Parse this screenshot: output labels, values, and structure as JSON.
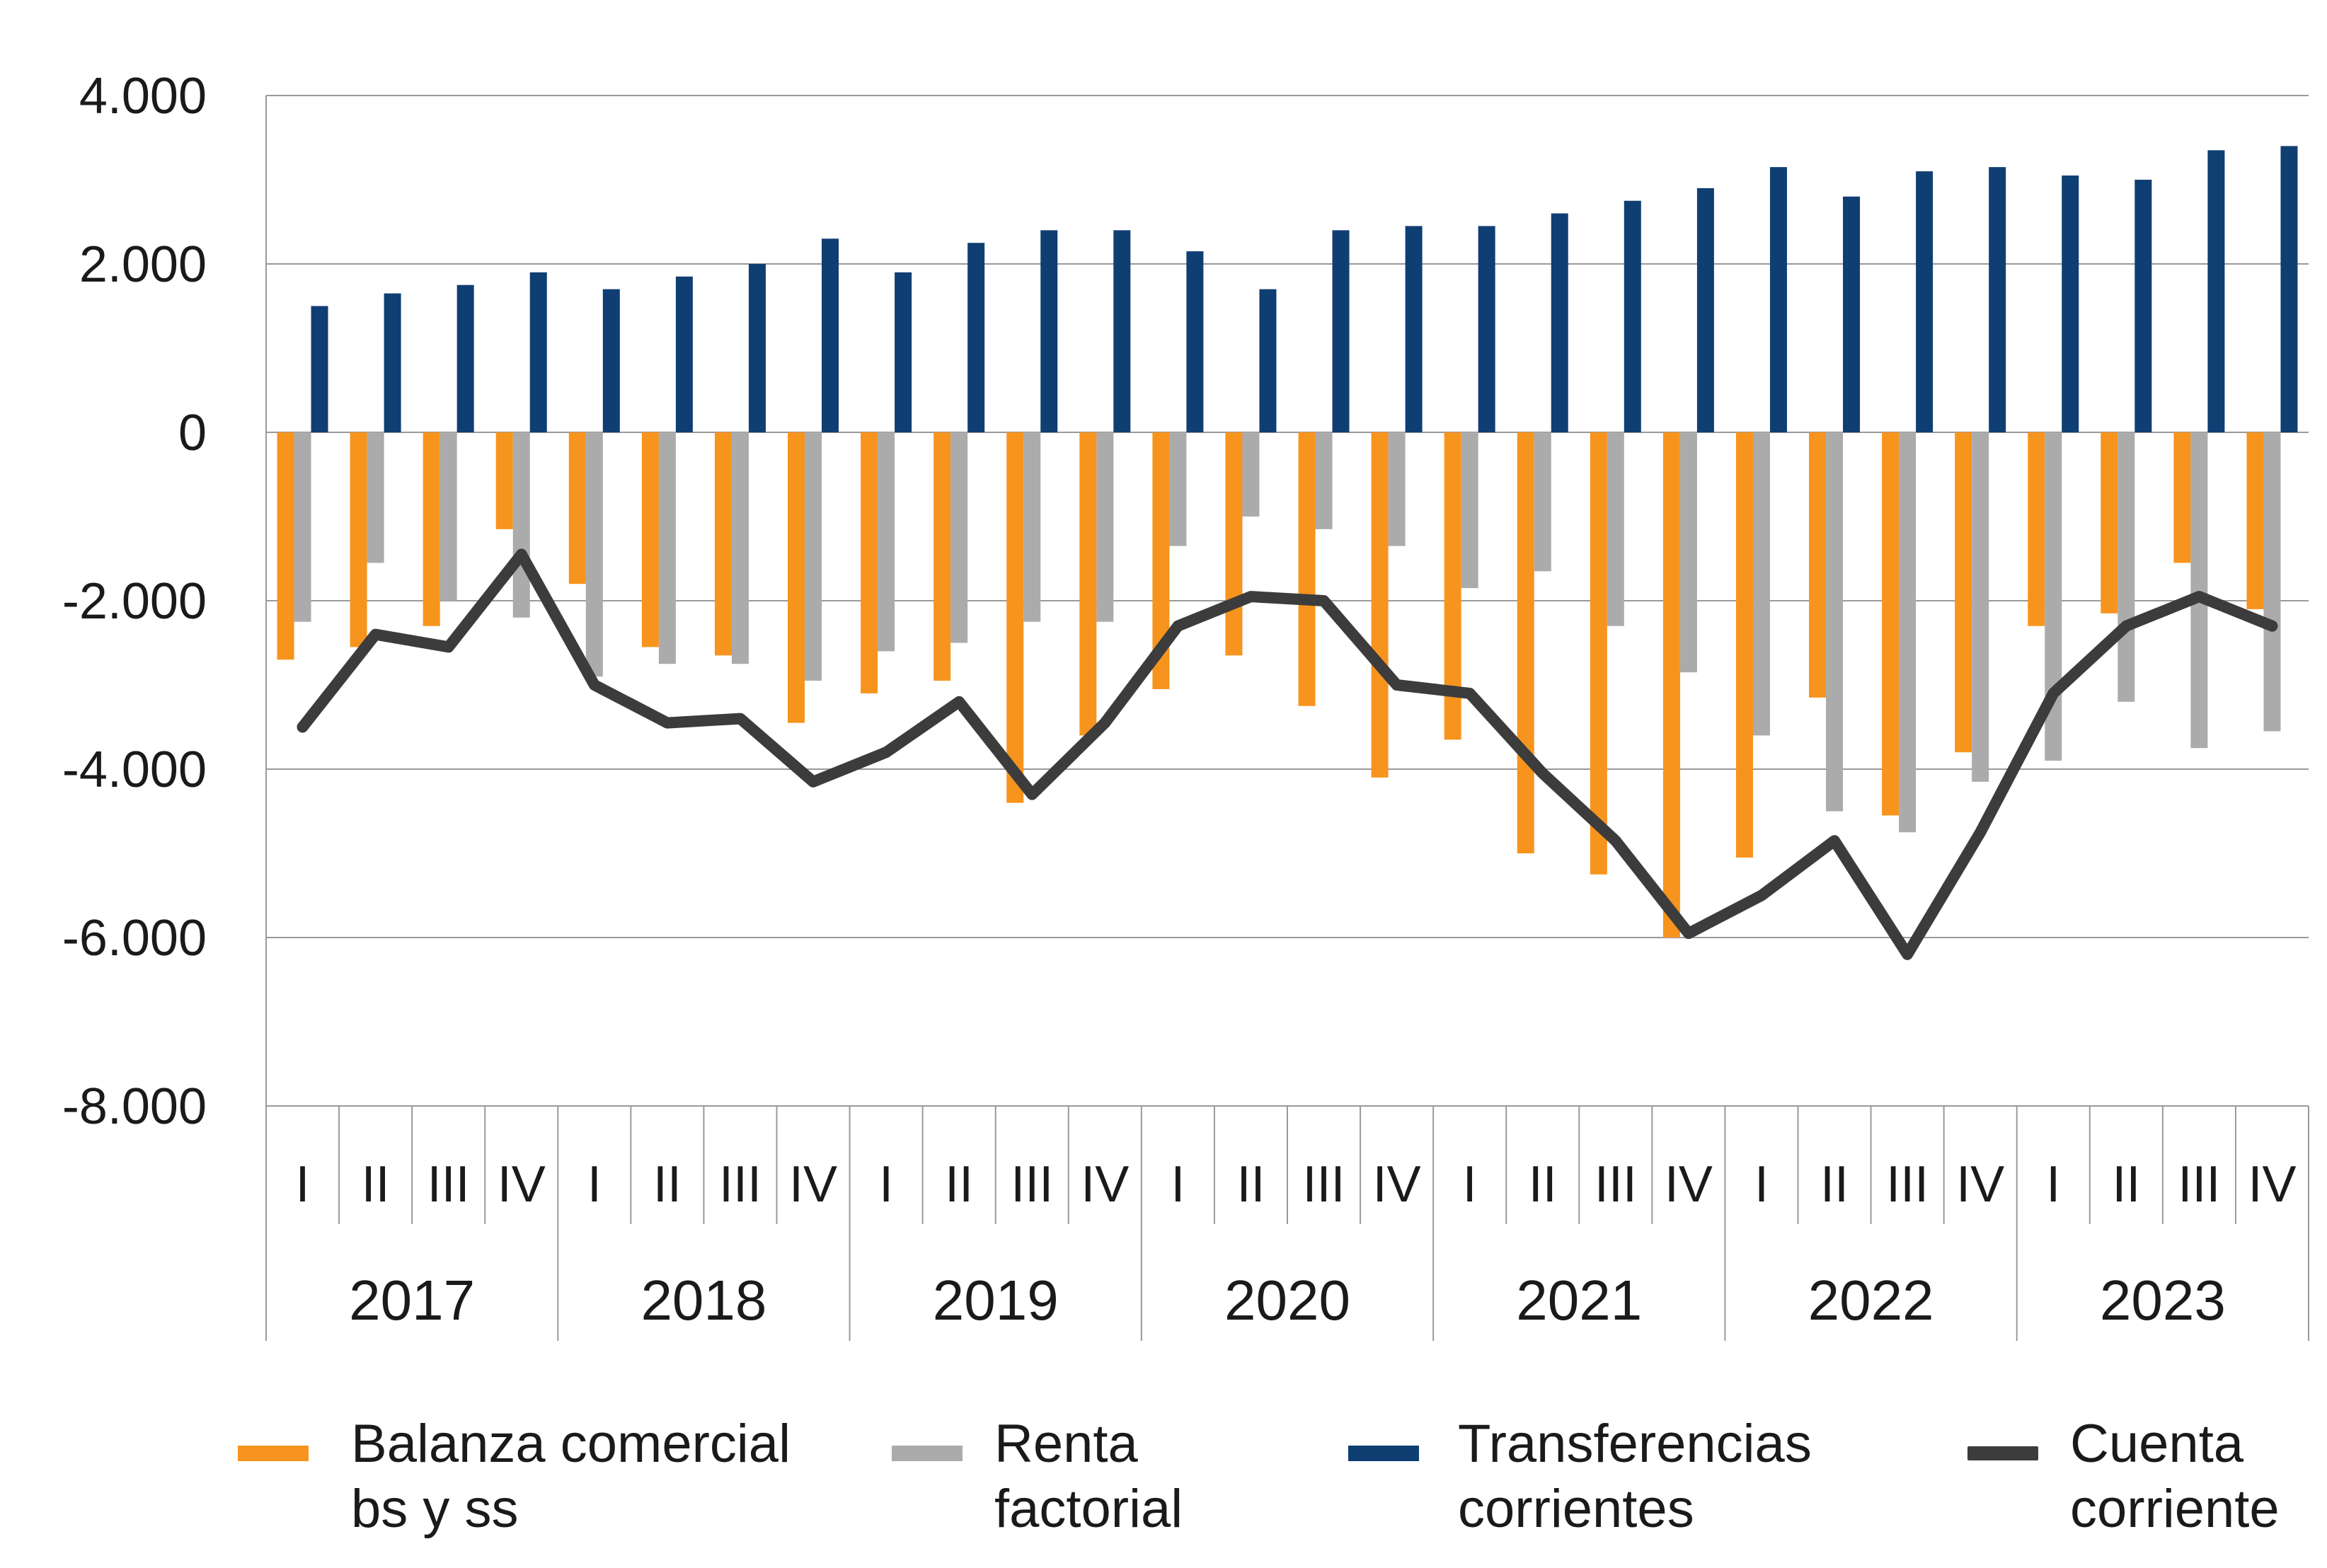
{
  "chart_data": {
    "type": "bar",
    "title": "",
    "xlabel": "",
    "ylabel": "",
    "ylim": [
      -8000,
      4000
    ],
    "yticks": [
      4000,
      2000,
      0,
      -2000,
      -4000,
      -6000,
      -8000
    ],
    "ytick_labels": [
      "4.000",
      "2.000",
      "0",
      "-2.000",
      "-4.000",
      "-6.000",
      "-8.000"
    ],
    "quarter_labels": [
      "I",
      "II",
      "III",
      "IV",
      "I",
      "II",
      "III",
      "IV",
      "I",
      "II",
      "III",
      "IV",
      "I",
      "II",
      "III",
      "IV",
      "I",
      "II",
      "III",
      "IV",
      "I",
      "II",
      "III",
      "IV",
      "I",
      "II",
      "III",
      "IV"
    ],
    "years": [
      "2017",
      "2018",
      "2019",
      "2020",
      "2021",
      "2022",
      "2023"
    ],
    "grid": true,
    "legend_position": "bottom",
    "series": [
      {
        "name": "Balanza comercial bs y ss",
        "kind": "bar",
        "color": "#F7941D",
        "values": [
          -2700,
          -2550,
          -2300,
          -1150,
          -1800,
          -2550,
          -2650,
          -3450,
          -3100,
          -2950,
          -4400,
          -3600,
          -3050,
          -2650,
          -3250,
          -4100,
          -3650,
          -5000,
          -5250,
          -6000,
          -5050,
          -3150,
          -4550,
          -3800,
          -2300,
          -2150,
          -1550,
          -2100
        ]
      },
      {
        "name": "Renta factorial",
        "kind": "bar",
        "color": "#ABABAB",
        "values": [
          -2250,
          -1550,
          -2000,
          -2200,
          -2900,
          -2750,
          -2750,
          -2950,
          -2600,
          -2500,
          -2250,
          -2250,
          -1350,
          -1000,
          -1150,
          -1350,
          -1850,
          -1650,
          -2300,
          -2850,
          -3600,
          -4500,
          -4750,
          -4150,
          -3900,
          -3200,
          -3750,
          -3550
        ]
      },
      {
        "name": "Transferencias corrientes",
        "kind": "bar",
        "color": "#0F3E73",
        "values": [
          1500,
          1650,
          1750,
          1900,
          1700,
          1850,
          2000,
          2300,
          1900,
          2250,
          2400,
          2400,
          2150,
          1700,
          2400,
          2450,
          2450,
          2600,
          2750,
          2900,
          3150,
          2800,
          3100,
          3150,
          3050,
          3000,
          3350,
          3400
        ]
      },
      {
        "name": "Cuenta corriente",
        "kind": "line",
        "color": "#3C3C3C",
        "values": [
          -3500,
          -2400,
          -2550,
          -1450,
          -3000,
          -3450,
          -3400,
          -4150,
          -3800,
          -3200,
          -4300,
          -3450,
          -2300,
          -1950,
          -2000,
          -3000,
          -3100,
          -4050,
          -4850,
          -5950,
          -5500,
          -4850,
          -6200,
          -4750,
          -3100,
          -2300,
          -1950,
          -2300
        ]
      }
    ]
  }
}
